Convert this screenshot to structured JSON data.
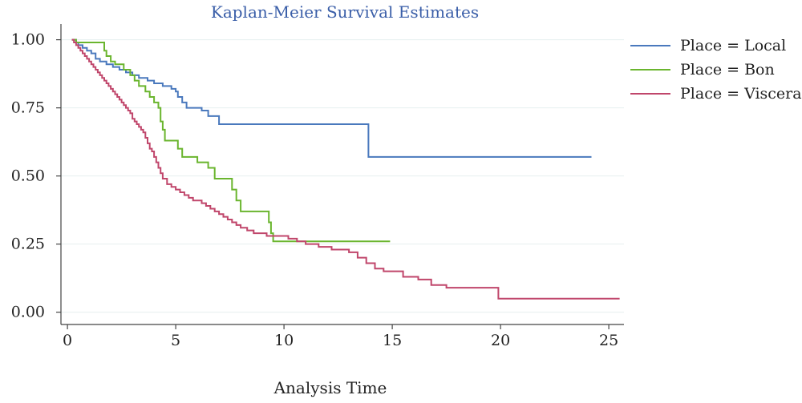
{
  "chart_data": {
    "type": "line",
    "title": "Kaplan-Meier Survival Estimates",
    "xlabel": "Analysis Time",
    "ylabel": "",
    "xlim": [
      -0.3,
      25.7
    ],
    "ylim": [
      -0.045,
      1.04
    ],
    "x_ticks": [
      0,
      5,
      10,
      15,
      20,
      25
    ],
    "x_tick_labels": [
      "0",
      "5",
      "10",
      "15",
      "20",
      "25"
    ],
    "y_ticks": [
      0.0,
      0.25,
      0.5,
      0.75,
      1.0
    ],
    "y_tick_labels": [
      "0.00",
      "0.25",
      "0.50",
      "0.75",
      "1.00"
    ],
    "grid": "horizontal",
    "legend_position": "top-right",
    "series": [
      {
        "name": "Place = Local",
        "color": "#4a79bd",
        "step_points": [
          [
            0.2,
            1.0
          ],
          [
            0.4,
            0.99
          ],
          [
            0.5,
            0.98
          ],
          [
            0.7,
            0.97
          ],
          [
            0.9,
            0.96
          ],
          [
            1.1,
            0.95
          ],
          [
            1.3,
            0.93
          ],
          [
            1.5,
            0.92
          ],
          [
            1.8,
            0.91
          ],
          [
            2.1,
            0.9
          ],
          [
            2.4,
            0.89
          ],
          [
            2.7,
            0.88
          ],
          [
            3.0,
            0.87
          ],
          [
            3.3,
            0.86
          ],
          [
            3.7,
            0.85
          ],
          [
            4.0,
            0.84
          ],
          [
            4.4,
            0.83
          ],
          [
            4.8,
            0.82
          ],
          [
            5.0,
            0.81
          ],
          [
            5.1,
            0.79
          ],
          [
            5.3,
            0.77
          ],
          [
            5.5,
            0.75
          ],
          [
            6.2,
            0.74
          ],
          [
            6.5,
            0.72
          ],
          [
            7.0,
            0.69
          ],
          [
            13.9,
            0.57
          ],
          [
            24.2,
            0.57
          ]
        ]
      },
      {
        "name": "Place = Bon",
        "color": "#6ab52e",
        "step_points": [
          [
            0.2,
            1.0
          ],
          [
            0.4,
            0.99
          ],
          [
            1.7,
            0.96
          ],
          [
            1.8,
            0.94
          ],
          [
            2.0,
            0.92
          ],
          [
            2.2,
            0.91
          ],
          [
            2.6,
            0.89
          ],
          [
            2.9,
            0.87
          ],
          [
            3.1,
            0.85
          ],
          [
            3.3,
            0.83
          ],
          [
            3.6,
            0.81
          ],
          [
            3.8,
            0.79
          ],
          [
            4.0,
            0.77
          ],
          [
            4.2,
            0.75
          ],
          [
            4.3,
            0.7
          ],
          [
            4.4,
            0.67
          ],
          [
            4.5,
            0.63
          ],
          [
            5.1,
            0.6
          ],
          [
            5.3,
            0.57
          ],
          [
            6.0,
            0.55
          ],
          [
            6.5,
            0.53
          ],
          [
            6.8,
            0.49
          ],
          [
            7.6,
            0.45
          ],
          [
            7.8,
            0.41
          ],
          [
            8.0,
            0.37
          ],
          [
            9.3,
            0.33
          ],
          [
            9.4,
            0.29
          ],
          [
            9.5,
            0.26
          ],
          [
            14.9,
            0.26
          ]
        ]
      },
      {
        "name": "Place = Viscera",
        "color": "#c0466b",
        "step_points": [
          [
            0.2,
            1.0
          ],
          [
            0.3,
            0.99
          ],
          [
            0.4,
            0.98
          ],
          [
            0.5,
            0.97
          ],
          [
            0.6,
            0.96
          ],
          [
            0.7,
            0.95
          ],
          [
            0.8,
            0.94
          ],
          [
            0.9,
            0.93
          ],
          [
            1.0,
            0.92
          ],
          [
            1.1,
            0.91
          ],
          [
            1.2,
            0.9
          ],
          [
            1.3,
            0.89
          ],
          [
            1.4,
            0.88
          ],
          [
            1.5,
            0.87
          ],
          [
            1.6,
            0.86
          ],
          [
            1.7,
            0.85
          ],
          [
            1.8,
            0.84
          ],
          [
            1.9,
            0.83
          ],
          [
            2.0,
            0.82
          ],
          [
            2.1,
            0.81
          ],
          [
            2.2,
            0.8
          ],
          [
            2.3,
            0.79
          ],
          [
            2.4,
            0.78
          ],
          [
            2.5,
            0.77
          ],
          [
            2.6,
            0.76
          ],
          [
            2.7,
            0.75
          ],
          [
            2.8,
            0.74
          ],
          [
            2.9,
            0.73
          ],
          [
            3.0,
            0.71
          ],
          [
            3.1,
            0.7
          ],
          [
            3.2,
            0.69
          ],
          [
            3.3,
            0.68
          ],
          [
            3.4,
            0.67
          ],
          [
            3.5,
            0.66
          ],
          [
            3.6,
            0.64
          ],
          [
            3.7,
            0.62
          ],
          [
            3.8,
            0.6
          ],
          [
            3.9,
            0.59
          ],
          [
            4.0,
            0.57
          ],
          [
            4.1,
            0.55
          ],
          [
            4.2,
            0.53
          ],
          [
            4.3,
            0.51
          ],
          [
            4.4,
            0.49
          ],
          [
            4.6,
            0.47
          ],
          [
            4.8,
            0.46
          ],
          [
            5.0,
            0.45
          ],
          [
            5.2,
            0.44
          ],
          [
            5.4,
            0.43
          ],
          [
            5.6,
            0.42
          ],
          [
            5.8,
            0.41
          ],
          [
            6.2,
            0.4
          ],
          [
            6.4,
            0.39
          ],
          [
            6.6,
            0.38
          ],
          [
            6.8,
            0.37
          ],
          [
            7.0,
            0.36
          ],
          [
            7.2,
            0.35
          ],
          [
            7.4,
            0.34
          ],
          [
            7.6,
            0.33
          ],
          [
            7.8,
            0.32
          ],
          [
            8.0,
            0.31
          ],
          [
            8.3,
            0.3
          ],
          [
            8.6,
            0.29
          ],
          [
            8.9,
            0.29
          ],
          [
            9.2,
            0.28
          ],
          [
            9.6,
            0.28
          ],
          [
            10.2,
            0.27
          ],
          [
            10.6,
            0.26
          ],
          [
            11.0,
            0.25
          ],
          [
            11.6,
            0.24
          ],
          [
            12.2,
            0.23
          ],
          [
            13.0,
            0.22
          ],
          [
            13.4,
            0.2
          ],
          [
            13.8,
            0.18
          ],
          [
            14.2,
            0.16
          ],
          [
            14.6,
            0.15
          ],
          [
            15.5,
            0.13
          ],
          [
            16.2,
            0.12
          ],
          [
            16.8,
            0.1
          ],
          [
            17.5,
            0.09
          ],
          [
            19.9,
            0.05
          ],
          [
            25.5,
            0.05
          ]
        ]
      }
    ]
  }
}
